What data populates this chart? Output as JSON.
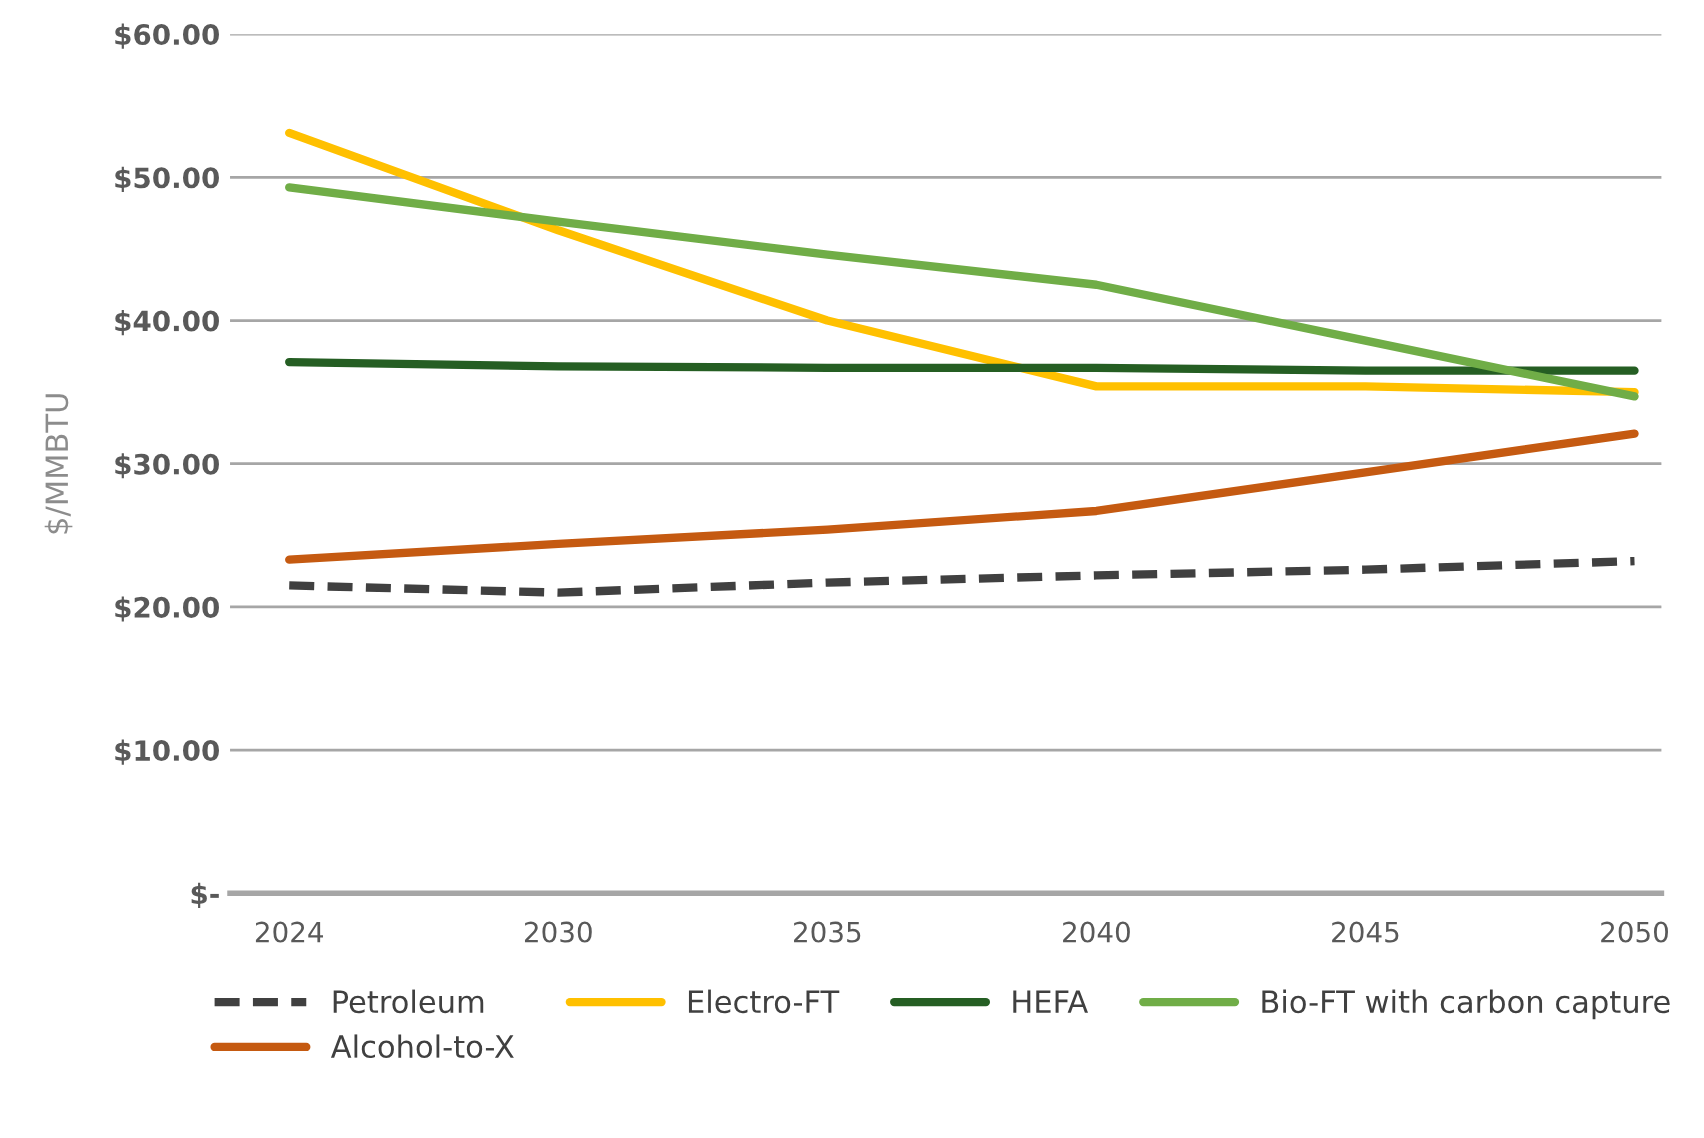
{
  "chart_data": {
    "type": "line",
    "ylabel": "$/MMBTU",
    "categories": [
      "2024",
      "2030",
      "2035",
      "2040",
      "2045",
      "2050"
    ],
    "series": [
      {
        "name": "Petroleum",
        "color": "#404040",
        "line_style": "dashed",
        "values": [
          21.5,
          21.0,
          21.7,
          22.2,
          22.6,
          23.2
        ]
      },
      {
        "name": "Electro-FT",
        "color": "#ffc000",
        "values": [
          53.1,
          46.3,
          40.0,
          35.4,
          35.4,
          35.0
        ]
      },
      {
        "name": "HEFA",
        "color": "#255e23",
        "values": [
          37.1,
          36.8,
          36.7,
          36.7,
          36.5,
          36.5
        ]
      },
      {
        "name": "Bio-FT with carbon capture",
        "color": "#70ad47",
        "values": [
          49.3,
          46.9,
          44.6,
          42.5,
          38.6,
          34.7
        ]
      },
      {
        "name": "Alcohol-to-X",
        "color": "#c55a11",
        "values": [
          23.3,
          24.4,
          25.4,
          26.7,
          29.4,
          32.1
        ]
      }
    ],
    "ylim": [
      0,
      60
    ],
    "yticks": [
      {
        "value": 0,
        "label": "$-"
      },
      {
        "value": 10,
        "label": "$10.00"
      },
      {
        "value": 20,
        "label": "$20.00"
      },
      {
        "value": 30,
        "label": "$30.00"
      },
      {
        "value": 40,
        "label": "$40.00"
      },
      {
        "value": 50,
        "label": "$50.00"
      },
      {
        "value": 60,
        "label": "$60.00"
      }
    ],
    "grid": "y",
    "legend": "bottom",
    "line_style": "solid"
  }
}
